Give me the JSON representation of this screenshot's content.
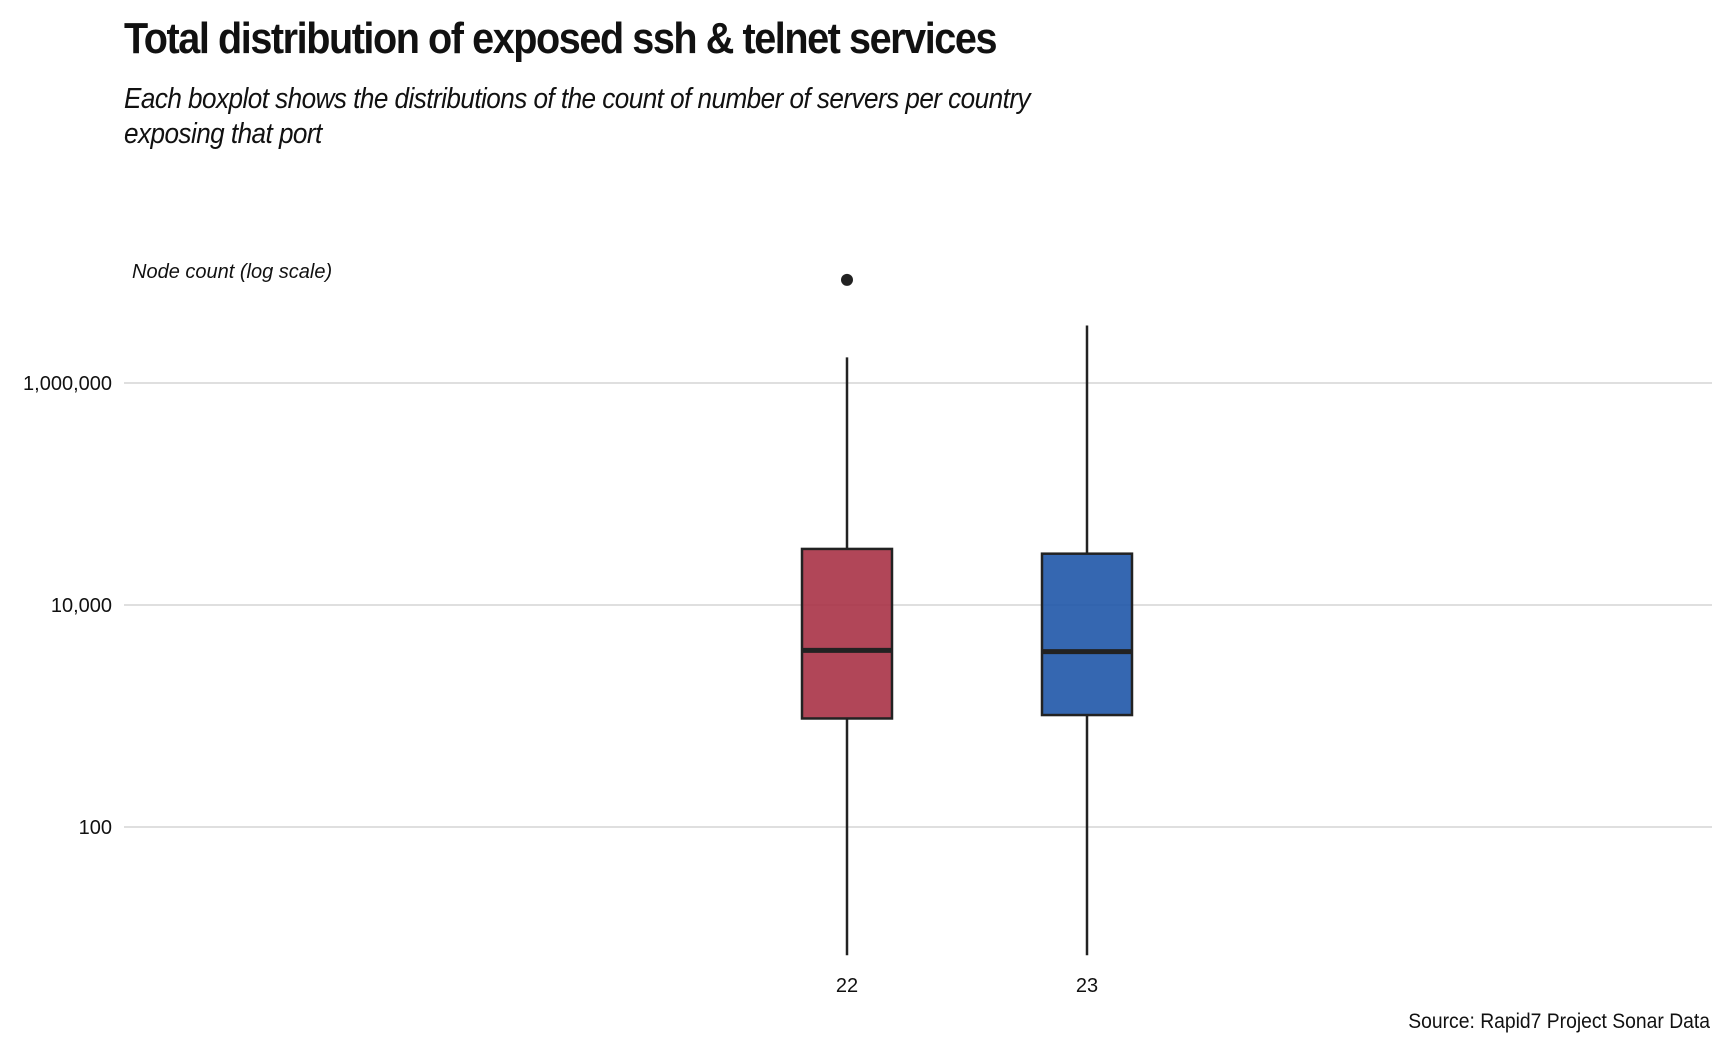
{
  "chart_data": {
    "type": "boxplot",
    "title": "Total distribution of exposed ssh & telnet services",
    "subtitle": "Each boxplot shows the distributions of the count of number of servers per country exposing that port",
    "ylabel": "Node count (log scale)",
    "y_scale": "log10",
    "ylim": [
      5,
      12000000
    ],
    "y_ticks": [
      100,
      10000,
      1000000
    ],
    "y_tick_labels": [
      "100",
      "10,000",
      "1,000,000"
    ],
    "grid": "horizontal",
    "categories": [
      "22",
      "23"
    ],
    "boxes": [
      {
        "category": "22",
        "whisker_low": 7,
        "q1": 950,
        "median": 3900,
        "q3": 32000,
        "whisker_high": 1700000,
        "outliers": [
          8500000
        ],
        "color": "#a83246"
      },
      {
        "category": "23",
        "whisker_low": 7,
        "q1": 1020,
        "median": 3800,
        "q3": 29000,
        "whisker_high": 3300000,
        "outliers": [],
        "color": "#1f56a8"
      }
    ],
    "caption": "Source: Rapid7 Project Sonar Data"
  }
}
